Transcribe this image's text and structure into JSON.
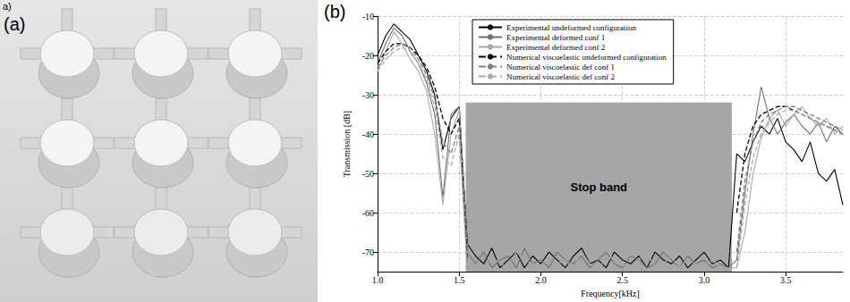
{
  "figure": {
    "panel_a": {
      "labels": [
        "a)",
        "(a)"
      ]
    },
    "panel_b": {
      "label": "(b)"
    }
  },
  "chart_data": {
    "type": "line",
    "xlabel": "Frequency[kHz]",
    "ylabel": "Transmission [dB]",
    "xlim": [
      1,
      3.85
    ],
    "ylim": [
      -75,
      -10
    ],
    "xticks": [
      {
        "value": 1,
        "label": "1.0"
      },
      1.5,
      {
        "value": 2,
        "label": "2.0"
      },
      2.5,
      {
        "value": 3,
        "label": "3.0"
      },
      3.5
    ],
    "yticks": [
      -10,
      -20,
      -30,
      -40,
      -50,
      -60,
      -70
    ],
    "grid": true,
    "legend": "top",
    "annotations": [
      {
        "text": "Stop band",
        "x": [
          1.54,
          3.17
        ],
        "y": [
          -75,
          -32
        ]
      }
    ],
    "x": [
      1.0,
      1.05,
      1.1,
      1.15,
      1.2,
      1.25,
      1.3,
      1.35,
      1.4,
      1.45,
      1.5,
      1.55,
      1.6,
      1.65,
      1.7,
      1.75,
      1.8,
      1.85,
      1.9,
      1.95,
      2.0,
      2.05,
      2.1,
      2.15,
      2.2,
      2.25,
      2.3,
      2.35,
      2.4,
      2.45,
      2.5,
      2.55,
      2.6,
      2.65,
      2.7,
      2.75,
      2.8,
      2.85,
      2.9,
      2.95,
      3.0,
      3.05,
      3.1,
      3.15,
      3.2,
      3.25,
      3.3,
      3.35,
      3.4,
      3.45,
      3.5,
      3.55,
      3.6,
      3.65,
      3.7,
      3.75,
      3.8,
      3.85
    ],
    "series": [
      {
        "name": "Experimental undeformed configuration",
        "color": "#000000",
        "line_style": "solid",
        "values": [
          -20,
          -15,
          -12,
          -14,
          -16,
          -20,
          -24,
          -30,
          -44,
          -36,
          -33,
          -68,
          -71,
          -73,
          -69,
          -74,
          -72,
          -70,
          -74,
          -71,
          -73,
          -70,
          -72,
          -74,
          -71,
          -69,
          -73,
          -72,
          -74,
          -70,
          -72,
          -73,
          -71,
          -74,
          -70,
          -72,
          -73,
          -71,
          -74,
          -72,
          -70,
          -73,
          -72,
          -74,
          -45,
          -47,
          -42,
          -38,
          -40,
          -36,
          -42,
          -44,
          -47,
          -42,
          -50,
          -52,
          -49,
          -58
        ]
      },
      {
        "name": "Experimental deformed conf 1",
        "color": "#707070",
        "line_style": "solid",
        "values": [
          -22,
          -17,
          -13,
          -15,
          -19,
          -22,
          -27,
          -35,
          -56,
          -35,
          -33,
          -70,
          -73,
          -70,
          -74,
          -72,
          -71,
          -74,
          -69,
          -73,
          -72,
          -74,
          -70,
          -72,
          -73,
          -71,
          -74,
          -72,
          -70,
          -73,
          -74,
          -71,
          -72,
          -74,
          -73,
          -70,
          -72,
          -74,
          -71,
          -73,
          -72,
          -74,
          -73,
          -74,
          -72,
          -55,
          -40,
          -28,
          -36,
          -40,
          -37,
          -35,
          -38,
          -40,
          -37,
          -42,
          -38,
          -40
        ]
      },
      {
        "name": "Experimental deformed conf 2",
        "color": "#a8a8a8",
        "line_style": "solid",
        "values": [
          -24,
          -19,
          -14,
          -17,
          -21,
          -24,
          -29,
          -40,
          -58,
          -40,
          -34,
          -70,
          -72,
          -74,
          -71,
          -73,
          -74,
          -70,
          -72,
          -73,
          -74,
          -71,
          -73,
          -72,
          -74,
          -70,
          -73,
          -74,
          -72,
          -71,
          -73,
          -74,
          -72,
          -70,
          -74,
          -73,
          -71,
          -74,
          -72,
          -73,
          -74,
          -72,
          -74,
          -74,
          -74,
          -65,
          -50,
          -41,
          -36,
          -34,
          -38,
          -35,
          -33,
          -36,
          -38,
          -36,
          -40,
          -38
        ]
      },
      {
        "name": "Numerical viscoelastic undeformed configuration",
        "color": "#000000",
        "line_style": "dashed",
        "values": [
          -22,
          -19,
          -17,
          -17,
          -18,
          -20,
          -23,
          -28,
          -36,
          -40,
          -36,
          -72,
          null,
          null,
          null,
          null,
          null,
          null,
          null,
          null,
          null,
          null,
          null,
          null,
          null,
          null,
          null,
          null,
          null,
          null,
          null,
          null,
          null,
          null,
          null,
          null,
          null,
          null,
          null,
          null,
          null,
          null,
          null,
          null,
          -60,
          -45,
          -38,
          -35,
          -34,
          -33,
          -33,
          -34,
          -35,
          -36,
          -37,
          -38,
          -39,
          -40
        ]
      },
      {
        "name": "Numerical viscoelastic def conf 1",
        "color": "#808080",
        "line_style": "dashed",
        "values": [
          -23,
          -20,
          -18,
          -17,
          -18,
          -21,
          -25,
          -31,
          -42,
          -45,
          -38,
          -74,
          null,
          null,
          null,
          null,
          null,
          null,
          null,
          null,
          null,
          null,
          null,
          null,
          null,
          null,
          null,
          null,
          null,
          null,
          null,
          null,
          null,
          null,
          null,
          null,
          null,
          null,
          null,
          null,
          null,
          null,
          null,
          null,
          -70,
          -52,
          -42,
          -37,
          -35,
          -34,
          -33,
          -33,
          -34,
          -35,
          -36,
          -37,
          -38,
          -39
        ]
      },
      {
        "name": "Numerical viscoelastic def conf 2",
        "color": "#ababab",
        "line_style": "dashed",
        "values": [
          -24,
          -21,
          -19,
          -18,
          -19,
          -22,
          -26,
          -33,
          -46,
          -48,
          -40,
          -75,
          null,
          null,
          null,
          null,
          null,
          null,
          null,
          null,
          null,
          null,
          null,
          null,
          null,
          null,
          null,
          null,
          null,
          null,
          null,
          null,
          null,
          null,
          null,
          null,
          null,
          null,
          null,
          null,
          null,
          null,
          null,
          null,
          -74,
          -58,
          -46,
          -40,
          -37,
          -35,
          -34,
          -34,
          -35,
          -36,
          -37,
          -38,
          -39,
          -40
        ]
      }
    ]
  }
}
